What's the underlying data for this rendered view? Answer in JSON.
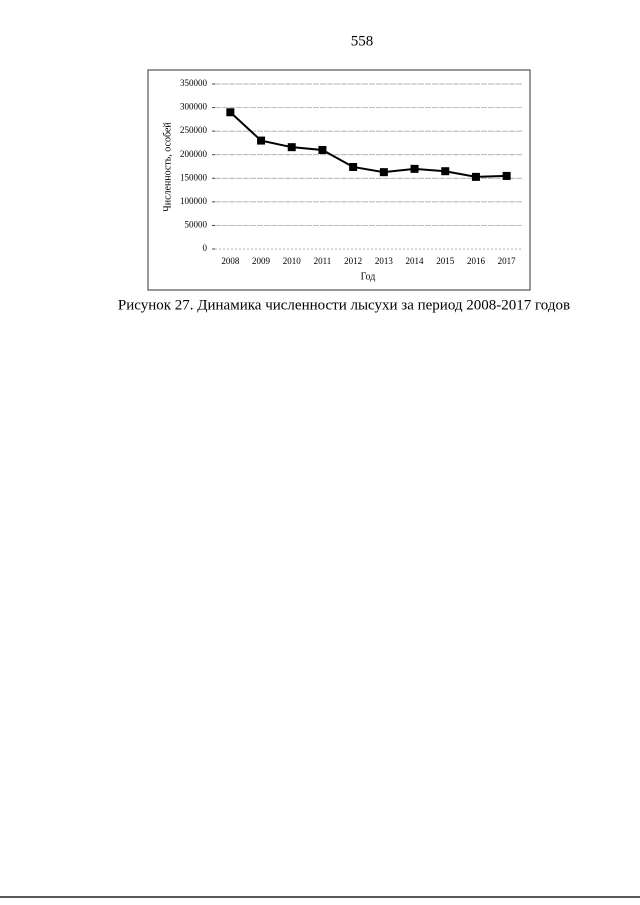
{
  "page_number": "558",
  "caption": "Рисунок 27. Динамика численности лысухи за период 2008-2017 годов",
  "chart_data": {
    "type": "line",
    "y_label": "Численность, особей",
    "x_label": "Год",
    "categories": [
      "2008",
      "2009",
      "2010",
      "2011",
      "2012",
      "2013",
      "2014",
      "2015",
      "2016",
      "2017"
    ],
    "values": [
      290000,
      230000,
      216000,
      210000,
      174000,
      163000,
      170000,
      165000,
      153000,
      155000
    ],
    "color": "#000000",
    "ylim": [
      0,
      350000
    ],
    "yticks": [
      0,
      50000,
      100000,
      150000,
      200000,
      250000,
      300000,
      350000
    ],
    "grid": true
  }
}
